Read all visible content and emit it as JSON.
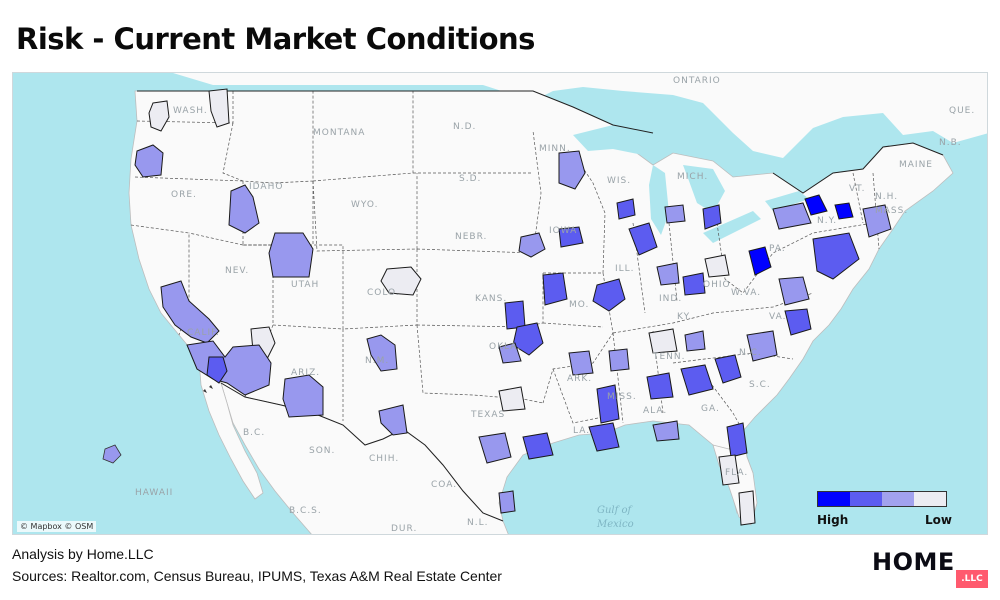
{
  "title": "Risk - Current Market Conditions",
  "map": {
    "attribution": "© Mapbox © OSM",
    "place_labels": [
      "ONTARIO",
      "WASH.",
      "MONTANA",
      "N.D.",
      "MINN.",
      "ORE.",
      "IDAHO",
      "S.D.",
      "WIS.",
      "MICH.",
      "WYO.",
      "IOWA",
      "NEBR.",
      "NEV.",
      "UTAH",
      "ILL.",
      "COLO.",
      "KANS.",
      "MO.",
      "IND.",
      "OHIO",
      "PA.",
      "CALIF.",
      "KY.",
      "W.VA.",
      "VA.",
      "ARIZ.",
      "OKLA.",
      "N.M.",
      "TENN.",
      "ARK.",
      "N.C.",
      "TEXAS",
      "MISS.",
      "ALA.",
      "GA.",
      "S.C.",
      "LA.",
      "FLA.",
      "B.C.",
      "SON.",
      "CHIH.",
      "COA.",
      "N.L.",
      "B.C.S.",
      "DUR.",
      "HAWAII",
      "MAINE",
      "N.B.",
      "VT.",
      "N.H.",
      "MASS.",
      "N.Y.",
      "QUE."
    ],
    "water_labels": [
      "Gulf of",
      "Mexico"
    ],
    "colors": {
      "land": "#fafafa",
      "water": "#aee6ee",
      "high": "#0000ff",
      "mid_high": "#5c5cf0",
      "mid_low": "#a2a2ee",
      "low": "#ececf2"
    }
  },
  "legend": {
    "high_label": "High",
    "low_label": "Low",
    "bins": [
      "#0000ff",
      "#5c5cf0",
      "#a2a2ee",
      "#ececf2"
    ]
  },
  "footer": {
    "analysis": "Analysis by Home.LLC",
    "sources": "Sources: Realtor.com, Census Bureau, IPUMS, Texas A&M Real Estate Center"
  },
  "brand": {
    "logo_text": "HOME",
    "logo_tag": ".LLC"
  }
}
